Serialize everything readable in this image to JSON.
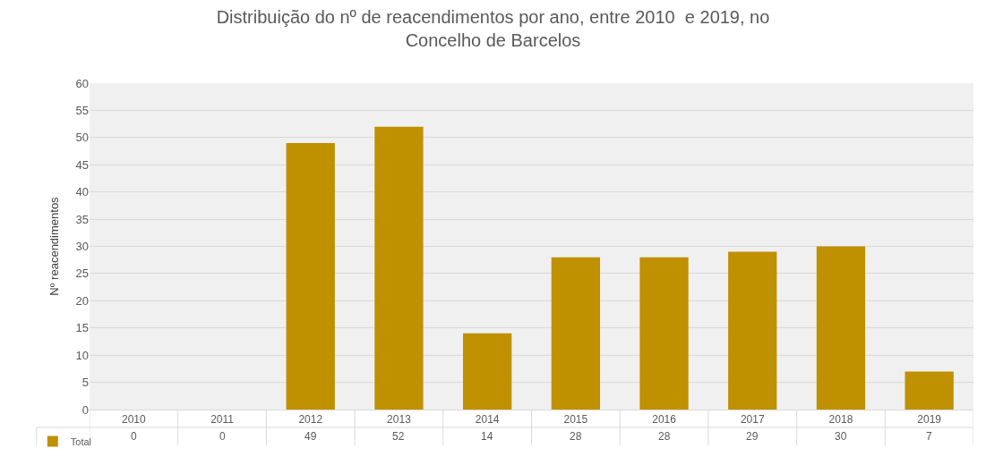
{
  "chart_data": {
    "type": "bar",
    "title": "Distribuição do nº de reacendimentos por ano, entre 2010  e 2019, no Concelho de Barcelos",
    "ylabel": "Nº reacendimentos",
    "categories": [
      "2010",
      "2011",
      "2012",
      "2013",
      "2014",
      "2015",
      "2016",
      "2017",
      "2018",
      "2019"
    ],
    "series": [
      {
        "name": "Total",
        "color": "#bf9000",
        "values": [
          0,
          0,
          49,
          52,
          14,
          28,
          28,
          29,
          30,
          7
        ]
      }
    ],
    "ylim": [
      0,
      60
    ],
    "yticks": [
      0,
      5,
      10,
      15,
      20,
      25,
      30,
      35,
      40,
      45,
      50,
      55,
      60
    ],
    "grid": "y",
    "legend": "bottom left",
    "data_labels": true
  }
}
